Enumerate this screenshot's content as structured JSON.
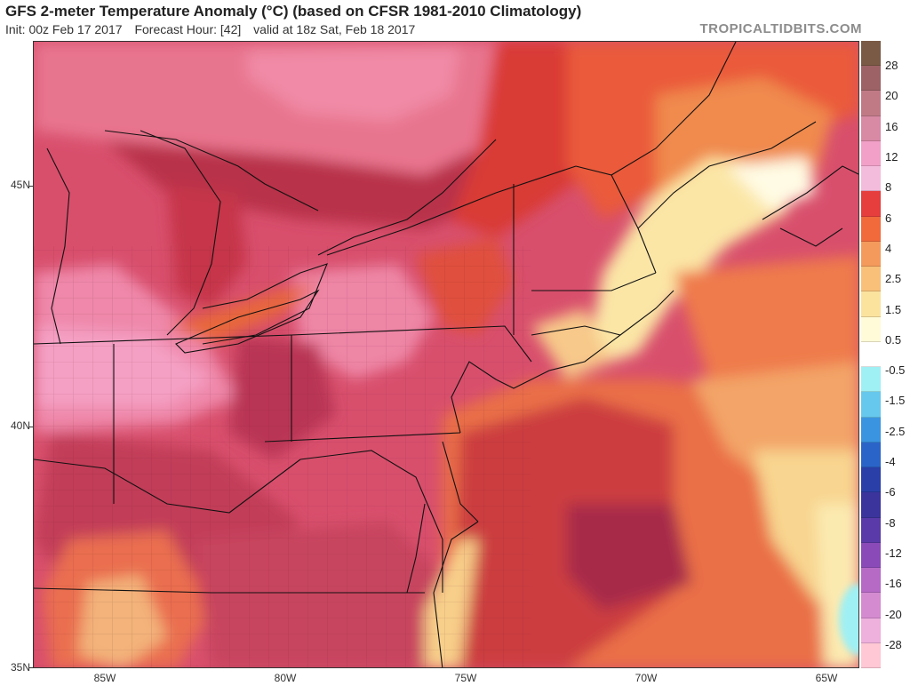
{
  "header": {
    "title": "GFS 2-meter Temperature Anomaly (°C) (based on CFSR 1981-2010 Climatology)",
    "init": "Init: 00z Feb 17 2017",
    "forecast_hour": "Forecast Hour: [42]",
    "valid": "valid at 18z Sat, Feb 18 2017",
    "brand": "TROPICALTIDBITS.COM"
  },
  "axes": {
    "lat_labels": [
      "45N",
      "40N",
      "35N"
    ],
    "lon_labels": [
      "85W",
      "80W",
      "75W",
      "70W",
      "65W"
    ]
  },
  "colorbar": {
    "labels": [
      "28",
      "20",
      "16",
      "12",
      "8",
      "6",
      "4",
      "2.5",
      "1.5",
      "0.5",
      "-0.5",
      "-1.5",
      "-2.5",
      "-4",
      "-6",
      "-8",
      "-12",
      "-16",
      "-20",
      "-28"
    ],
    "colors": [
      "#7a5a44",
      "#9c6266",
      "#c07a86",
      "#d889a4",
      "#f2a0c8",
      "#f4bcdc",
      "#e63d3d",
      "#f06a3c",
      "#f49a5c",
      "#f8c078",
      "#fbe39e",
      "#fffbd8",
      "#ffffff",
      "#9ff0f4",
      "#66c8ec",
      "#3a94e0",
      "#2b64c8",
      "#2a3fa8",
      "#3b349c",
      "#5a3aa8",
      "#8a4ab8",
      "#b66ac6",
      "#d58bd0",
      "#eeb0dc",
      "#ffc8d4"
    ]
  }
}
